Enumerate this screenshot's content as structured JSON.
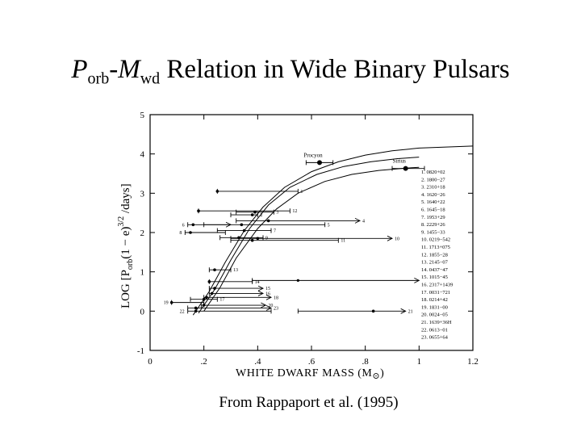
{
  "title": {
    "p": "P",
    "p_sub": "orb",
    "dash": "-",
    "m": "M",
    "m_sub": "wd",
    "rest": " Relation in Wide Binary Pulsars"
  },
  "caption": "From Rappaport et al. (1995)",
  "chart_data": {
    "type": "scatter",
    "xlabel_main": "WHITE  DWARF  MASS  (M",
    "xlabel_sym": "⊙",
    "xlabel_end": ")",
    "ylabel": "LOG  [P",
    "ylabel_sub": "orb",
    "ylabel_rest": "(1 − e)",
    "ylabel_sup": "3/2",
    "ylabel_end": " /days]",
    "xlim": [
      0,
      1.2
    ],
    "ylim": [
      -1,
      5
    ],
    "x_ticks": [
      {
        "v": 0,
        "label": "0"
      },
      {
        "v": 0.2,
        "label": ".2"
      },
      {
        "v": 0.4,
        "label": ".4"
      },
      {
        "v": 0.6,
        "label": ".6"
      },
      {
        "v": 0.8,
        "label": ".8"
      },
      {
        "v": 1.0,
        "label": "1"
      },
      {
        "v": 1.2,
        "label": "1.2"
      }
    ],
    "y_ticks": [
      {
        "v": -1,
        "label": "-1"
      },
      {
        "v": 0,
        "label": "0"
      },
      {
        "v": 1,
        "label": "1"
      },
      {
        "v": 2,
        "label": "2"
      },
      {
        "v": 3,
        "label": "3"
      },
      {
        "v": 4,
        "label": "4"
      },
      {
        "v": 5,
        "label": "5"
      }
    ],
    "curves": [
      {
        "points": [
          [
            0.16,
            -0.1
          ],
          [
            0.22,
            0.5
          ],
          [
            0.28,
            1.25
          ],
          [
            0.35,
            2.05
          ],
          [
            0.42,
            2.65
          ],
          [
            0.5,
            3.15
          ],
          [
            0.6,
            3.55
          ],
          [
            0.7,
            3.8
          ],
          [
            0.8,
            3.97
          ],
          [
            0.9,
            4.08
          ],
          [
            1.0,
            4.15
          ],
          [
            1.2,
            4.2
          ]
        ]
      },
      {
        "points": [
          [
            0.18,
            -0.05
          ],
          [
            0.24,
            0.55
          ],
          [
            0.3,
            1.3
          ],
          [
            0.37,
            2.1
          ],
          [
            0.44,
            2.7
          ],
          [
            0.52,
            3.15
          ],
          [
            0.62,
            3.48
          ],
          [
            0.72,
            3.68
          ],
          [
            0.82,
            3.8
          ],
          [
            0.92,
            3.88
          ],
          [
            1.0,
            3.92
          ]
        ]
      },
      {
        "points": [
          [
            0.2,
            0.0
          ],
          [
            0.26,
            0.6
          ],
          [
            0.32,
            1.35
          ],
          [
            0.4,
            2.1
          ],
          [
            0.47,
            2.6
          ],
          [
            0.55,
            3.0
          ],
          [
            0.65,
            3.3
          ],
          [
            0.75,
            3.48
          ],
          [
            0.85,
            3.58
          ],
          [
            0.95,
            3.64
          ],
          [
            1.0,
            3.66
          ]
        ]
      }
    ],
    "named_points": [
      {
        "name": "Procyon",
        "x": 0.63,
        "y": 3.78,
        "xerr": [
          0.58,
          0.68
        ]
      },
      {
        "name": "Sirius",
        "x": 0.95,
        "y": 3.63,
        "xerr": [
          0.9,
          1.02
        ]
      }
    ],
    "pulsars": [
      {
        "label": "1",
        "x": 0.25,
        "y": 3.05,
        "xmin": 0.25,
        "xmax": 0.55,
        "arrow": false
      },
      {
        "label": "2",
        "x": 0.38,
        "y": 2.45,
        "xmin": 0.3,
        "xmax": 0.4,
        "arrow": false
      },
      {
        "label": "3",
        "x": 0.39,
        "y": 2.52,
        "xmin": 0.32,
        "xmax": 0.46,
        "arrow": false
      },
      {
        "label": "4",
        "x": 0.44,
        "y": 2.3,
        "xmin": 0.32,
        "xmax": 0.78,
        "arrow": true
      },
      {
        "label": "5",
        "x": 0.34,
        "y": 2.2,
        "xmin": 0.2,
        "xmax": 0.65,
        "arrow": false
      },
      {
        "label": "6",
        "x": 0.16,
        "y": 2.2,
        "xmin": 0.14,
        "xmax": 0.3,
        "arrow": true
      },
      {
        "label": "7",
        "x": 0.35,
        "y": 2.05,
        "xmin": 0.25,
        "xmax": 0.45,
        "arrow": false
      },
      {
        "label": "8",
        "x": 0.15,
        "y": 2.0,
        "xmin": 0.13,
        "xmax": 0.28,
        "arrow": false
      },
      {
        "label": "9",
        "x": 0.33,
        "y": 1.87,
        "xmin": 0.26,
        "xmax": 0.42,
        "arrow": false
      },
      {
        "label": "10",
        "x": 0.4,
        "y": 1.85,
        "xmin": 0.3,
        "xmax": 0.9,
        "arrow": true
      },
      {
        "label": "11",
        "x": 0.38,
        "y": 1.8,
        "xmin": 0.3,
        "xmax": 0.7,
        "arrow": false
      },
      {
        "label": "12",
        "x": 0.18,
        "y": 2.55,
        "xmin": 0.18,
        "xmax": 0.52,
        "arrow": false
      },
      {
        "label": "13",
        "x": 0.24,
        "y": 1.05,
        "xmin": 0.22,
        "xmax": 0.3,
        "arrow": false
      },
      {
        "label": "14",
        "x": 0.22,
        "y": 0.75,
        "xmin": 0.22,
        "xmax": 0.38,
        "arrow": false
      },
      {
        "label": "15",
        "x": 0.24,
        "y": 0.58,
        "xmin": 0.22,
        "xmax": 0.42,
        "arrow": true
      },
      {
        "label": "16",
        "x": 0.23,
        "y": 0.45,
        "xmin": 0.22,
        "xmax": 0.42,
        "arrow": true
      },
      {
        "label": "17",
        "x": 0.2,
        "y": 0.3,
        "xmin": 0.15,
        "xmax": 0.25,
        "arrow": false
      },
      {
        "label": "18",
        "x": 0.21,
        "y": 0.35,
        "xmin": 0.2,
        "xmax": 0.45,
        "arrow": true
      },
      {
        "label": "19",
        "x": 0.08,
        "y": 0.22,
        "xmin": 0.08,
        "xmax": 0.2,
        "arrow": false
      },
      {
        "label": "20",
        "x": 0.2,
        "y": 0.15,
        "xmin": 0.19,
        "xmax": 0.43,
        "arrow": true
      },
      {
        "label": "21",
        "x": 0.83,
        "y": 0.0,
        "xmin": 0.55,
        "xmax": 0.95,
        "arrow": true
      },
      {
        "label": "22",
        "x": 0.17,
        "y": 0.0,
        "xmin": 0.14,
        "xmax": 0.45,
        "arrow": false
      },
      {
        "label": "23",
        "x": 0.17,
        "y": 0.08,
        "xmin": 0.14,
        "xmax": 0.45,
        "arrow": true
      }
    ],
    "extra_arrows": [
      {
        "x": 0.55,
        "y": 0.78,
        "xmin": 0.38,
        "xmax": 1.0
      }
    ],
    "legend": [
      "1.  0820+02",
      "2.  1800−27",
      "3.  2310+18",
      "4.  1620−26",
      "5.  1640+22",
      "6.  1645−18",
      "7.  1953+29",
      "8.  2229+26",
      "9.  1455−33",
      "10.  0219−542",
      "11.  1713+075",
      "12.  1855−28",
      "13.  2145−07",
      "14.  0437−47",
      "15.  1015−45",
      "16.  2317+1439",
      "17.  0031−721",
      "18.  0214+42",
      "19.  1831−00",
      "20.  0024−05",
      "21.  1639+36H",
      "22.  0613−01",
      "23.  0655+64"
    ]
  }
}
